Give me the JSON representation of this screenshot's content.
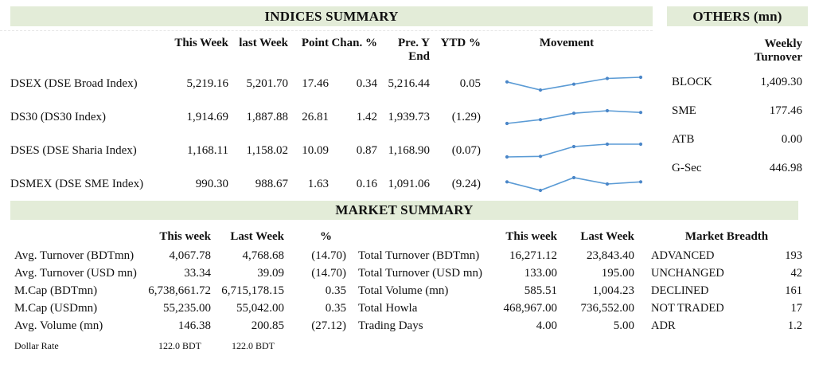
{
  "colors": {
    "header_bg": "#e3ecd8",
    "spark_line": "#5b9bd5",
    "spark_marker": "#4a86c8",
    "text": "#111111"
  },
  "indices_summary": {
    "title": "INDICES SUMMARY",
    "columns": [
      "This Week",
      "last Week",
      "Point",
      "Chan. %",
      "Pre. Y End",
      "YTD %",
      "Movement"
    ],
    "rows": [
      {
        "label": "DSEX (DSE Broad Index)",
        "this_week": "5,219.16",
        "last_week": "5,201.70",
        "point": "17.46",
        "chan_pct": "0.34",
        "pre_y_end": "5,216.44",
        "ytd_pct": "0.05"
      },
      {
        "label": "DS30 (DS30 Index)",
        "this_week": "1,914.69",
        "last_week": "1,887.88",
        "point": "26.81",
        "chan_pct": "1.42",
        "pre_y_end": "1,939.73",
        "ytd_pct": "(1.29)"
      },
      {
        "label": "DSES (DSE Sharia Index)",
        "this_week": "1,168.11",
        "last_week": "1,158.02",
        "point": "10.09",
        "chan_pct": "0.87",
        "pre_y_end": "1,168.90",
        "ytd_pct": "(0.07)"
      },
      {
        "label": "DSMEX (DSE SME Index)",
        "this_week": "990.30",
        "last_week": "988.67",
        "point": "1.63",
        "chan_pct": "0.16",
        "pre_y_end": "1,091.06",
        "ytd_pct": "(9.24)"
      }
    ]
  },
  "chart_data": [
    {
      "type": "line",
      "name": "DSEX movement sparkline",
      "x": [
        1,
        2,
        3,
        4,
        5
      ],
      "values": [
        55,
        20,
        45,
        70,
        75
      ],
      "note": "relative levels estimated from sparkline, no axes shown"
    },
    {
      "type": "line",
      "name": "DS30 movement sparkline",
      "x": [
        1,
        2,
        3,
        4,
        5
      ],
      "values": [
        20,
        35,
        60,
        70,
        63
      ],
      "note": "relative levels estimated from sparkline, no axes shown"
    },
    {
      "type": "line",
      "name": "DSES movement sparkline",
      "x": [
        1,
        2,
        3,
        4,
        5
      ],
      "values": [
        25,
        27,
        60,
        68,
        68
      ],
      "note": "relative levels estimated from sparkline, no axes shown"
    },
    {
      "type": "line",
      "name": "DSMEX movement sparkline",
      "x": [
        1,
        2,
        3,
        4,
        5
      ],
      "values": [
        55,
        15,
        75,
        45,
        55
      ],
      "note": "relative levels estimated from sparkline, no axes shown"
    }
  ],
  "others": {
    "title": "OTHERS (mn)",
    "column": "Weekly Turnover",
    "rows": [
      {
        "label": "BLOCK",
        "value": "1,409.30"
      },
      {
        "label": "SME",
        "value": "177.46"
      },
      {
        "label": "ATB",
        "value": "0.00"
      },
      {
        "label": "G-Sec",
        "value": "446.98"
      }
    ]
  },
  "market_summary": {
    "title": "MARKET SUMMARY",
    "left": {
      "columns": [
        "This week",
        "Last Week",
        "%"
      ],
      "rows": [
        {
          "label": "Avg. Turnover (BDTmn)",
          "this_week": "4,067.78",
          "last_week": "4,768.68",
          "pct": "(14.70)"
        },
        {
          "label": "Avg. Turnover (USD mn)",
          "this_week": "33.34",
          "last_week": "39.09",
          "pct": "(14.70)"
        },
        {
          "label": "M.Cap (BDTmn)",
          "this_week": "6,738,661.72",
          "last_week": "6,715,178.15",
          "pct": "0.35"
        },
        {
          "label": "M.Cap (USDmn)",
          "this_week": "55,235.00",
          "last_week": "55,042.00",
          "pct": "0.35"
        },
        {
          "label": "Avg. Volume (mn)",
          "this_week": "146.38",
          "last_week": "200.85",
          "pct": "(27.12)"
        }
      ],
      "dollar_rate": {
        "label": "Dollar Rate",
        "this_week": "122.0 BDT",
        "last_week": "122.0 BDT"
      }
    },
    "middle": {
      "columns": [
        "This week",
        "Last Week"
      ],
      "rows": [
        {
          "label": "Total Turnover (BDTmn)",
          "this_week": "16,271.12",
          "last_week": "23,843.40"
        },
        {
          "label": "Total Turnover (USD mn)",
          "this_week": "133.00",
          "last_week": "195.00"
        },
        {
          "label": "Total Volume (mn)",
          "this_week": "585.51",
          "last_week": "1,004.23"
        },
        {
          "label": "Total Howla",
          "this_week": "468,967.00",
          "last_week": "736,552.00"
        },
        {
          "label": "Trading Days",
          "this_week": "4.00",
          "last_week": "5.00"
        }
      ]
    },
    "breadth": {
      "title": "Market Breadth",
      "rows": [
        {
          "label": "ADVANCED",
          "value": "193"
        },
        {
          "label": "UNCHANGED",
          "value": "42"
        },
        {
          "label": "DECLINED",
          "value": "161"
        },
        {
          "label": "NOT TRADED",
          "value": "17"
        },
        {
          "label": "ADR",
          "value": "1.2"
        }
      ]
    }
  }
}
